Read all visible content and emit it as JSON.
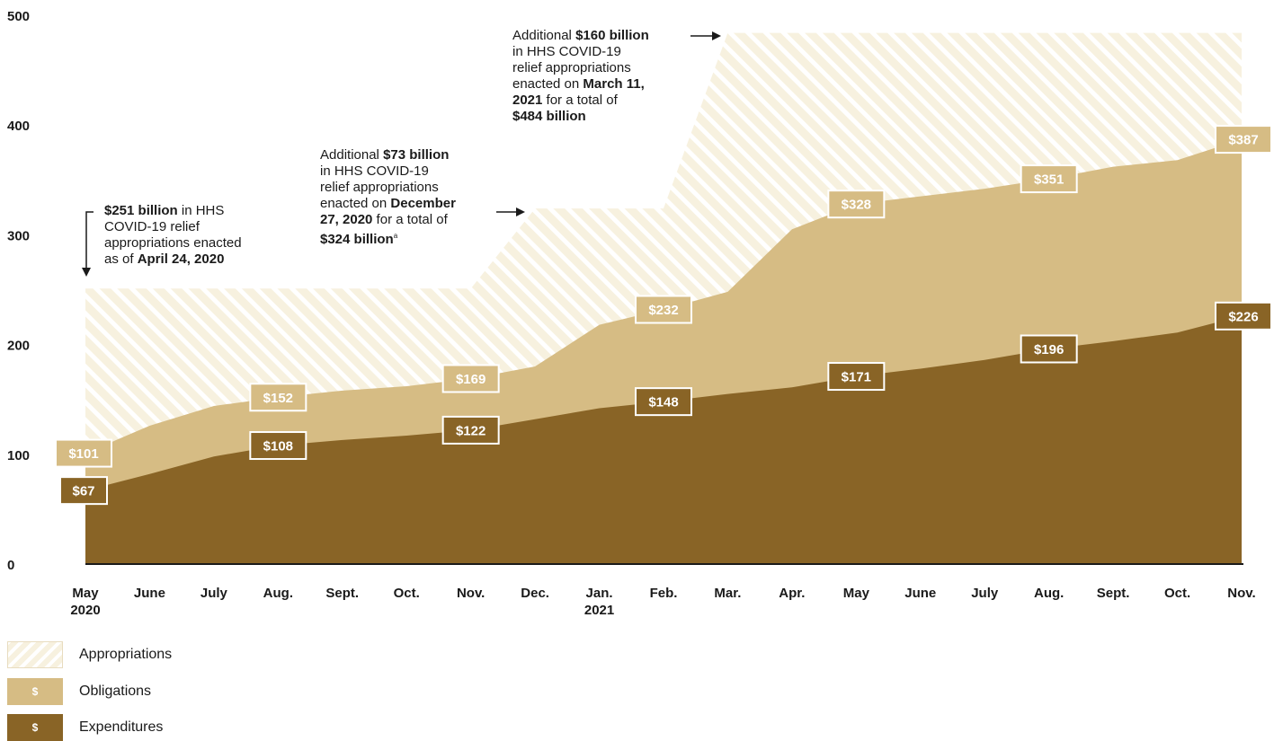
{
  "chart_data": {
    "type": "area",
    "categories": [
      "May\n2020",
      "June",
      "July",
      "Aug.",
      "Sept.",
      "Oct.",
      "Nov.",
      "Dec.",
      "Jan.\n2021",
      "Feb.",
      "Mar.",
      "Apr.",
      "May",
      "June",
      "July",
      "Aug.",
      "Sept.",
      "Oct.",
      "Nov."
    ],
    "ylim": [
      0,
      500
    ],
    "yticks": [
      0,
      100,
      200,
      300,
      400,
      500
    ],
    "series": [
      {
        "name": "Appropriations",
        "values": [
          251,
          251,
          251,
          251,
          251,
          251,
          251,
          324,
          324,
          324,
          484,
          484,
          484,
          484,
          484,
          484,
          484,
          484,
          484
        ]
      },
      {
        "name": "Obligations",
        "values": [
          101,
          126,
          144,
          152,
          158,
          162,
          169,
          180,
          218,
          232,
          248,
          305,
          328,
          335,
          342,
          351,
          362,
          368,
          387
        ]
      },
      {
        "name": "Expenditures",
        "values": [
          67,
          82,
          98,
          108,
          113,
          117,
          122,
          132,
          142,
          148,
          155,
          161,
          171,
          178,
          186,
          196,
          203,
          211,
          226
        ]
      }
    ],
    "data_labels": {
      "obligations": [
        {
          "index": 0,
          "text": "$101"
        },
        {
          "index": 3,
          "text": "$152"
        },
        {
          "index": 6,
          "text": "$169"
        },
        {
          "index": 9,
          "text": "$232"
        },
        {
          "index": 12,
          "text": "$328"
        },
        {
          "index": 15,
          "text": "$351"
        },
        {
          "index": 18,
          "text": "$387"
        }
      ],
      "expenditures": [
        {
          "index": 0,
          "text": "$67"
        },
        {
          "index": 3,
          "text": "$108"
        },
        {
          "index": 6,
          "text": "$122"
        },
        {
          "index": 9,
          "text": "$148"
        },
        {
          "index": 12,
          "text": "$171"
        },
        {
          "index": 15,
          "text": "$196"
        },
        {
          "index": 18,
          "text": "$226"
        }
      ]
    },
    "annotations": {
      "first": {
        "bold1": "$251 billion",
        "t1": " in HHS",
        "line2": "COVID-19 relief",
        "line3": "appropriations enacted",
        "t4": "as of ",
        "bold4": "April 24, 2020"
      },
      "second": {
        "t1": "Additional ",
        "bold1": "$73 billion",
        "line2": "in HHS COVID-19",
        "line3": "relief appropriations",
        "t4": "enacted on ",
        "bold4": "December",
        "bold5": "27, 2020",
        "t5": " for a total of",
        "bold6": "$324 billion",
        "sup6": "a"
      },
      "third": {
        "t1": "Additional ",
        "bold1": "$160 billion",
        "line2": "in HHS COVID-19",
        "line3": "relief appropriations",
        "t4": "enacted on ",
        "bold4": "March 11,",
        "bold5": "2021",
        "t5": " for a total of",
        "bold6": "$484 billion"
      }
    },
    "colors": {
      "appropriations_bg": "#f7f1df",
      "appropriations_hatch": "#ffffff",
      "obligations": "#d6bc84",
      "expenditures": "#896426",
      "axis": "#1a1a1a"
    }
  },
  "legend": [
    {
      "name": "Appropriations",
      "symbol": ""
    },
    {
      "name": "Obligations",
      "symbol": "$"
    },
    {
      "name": "Expenditures",
      "symbol": "$"
    }
  ]
}
